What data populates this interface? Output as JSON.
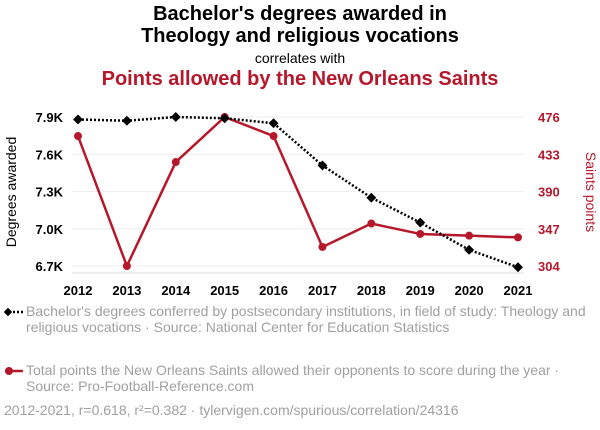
{
  "title_line1": "Bachelor's degrees awarded in",
  "title_line2": "Theology and religious vocations",
  "subtitle": "correlates with",
  "title2": "Points allowed by the New Orleans Saints",
  "colors": {
    "series1": "#000000",
    "series2": "#b5182b",
    "grid": "#eeeeee",
    "legend_text": "#a0a0a0"
  },
  "legend": {
    "item1": "Bachelor's degrees conferred by postsecondary institutions, in field of study: Theology and religious vocations · Source: National Center for Education Statistics",
    "item2": "Total points the New Orleans Saints allowed their opponents to score during the year · Source: Pro-Football-Reference.com"
  },
  "footer": "2012-2021, r=0.618, r²=0.382 · tylervigen.com/spurious/correlation/24316",
  "chart_data": {
    "type": "line",
    "x": [
      2012,
      2013,
      2014,
      2015,
      2016,
      2017,
      2018,
      2019,
      2020,
      2021
    ],
    "xlabel": "",
    "series": [
      {
        "name": "Degrees awarded",
        "axis": "left",
        "values": [
          7880,
          7870,
          7900,
          7890,
          7850,
          7510,
          7250,
          7050,
          6830,
          6690
        ],
        "marker": "diamond",
        "dash": "dotted"
      },
      {
        "name": "Saints points",
        "axis": "right",
        "values": [
          454,
          304,
          424,
          476,
          454,
          326,
          353,
          341,
          339,
          337
        ],
        "marker": "circle",
        "dash": "solid"
      }
    ],
    "y_left": {
      "label": "Degrees awarded",
      "ticks": [
        6700,
        7000,
        7300,
        7600,
        7900
      ],
      "tick_labels": [
        "6.7K",
        "7.0K",
        "7.3K",
        "7.6K",
        "7.9K"
      ],
      "range": [
        6700,
        7900
      ]
    },
    "y_right": {
      "label": "Saints points",
      "ticks": [
        304,
        347,
        390,
        433,
        476
      ],
      "tick_labels": [
        "304",
        "347",
        "390",
        "433",
        "476"
      ],
      "range": [
        304,
        476
      ]
    },
    "grid": true
  }
}
